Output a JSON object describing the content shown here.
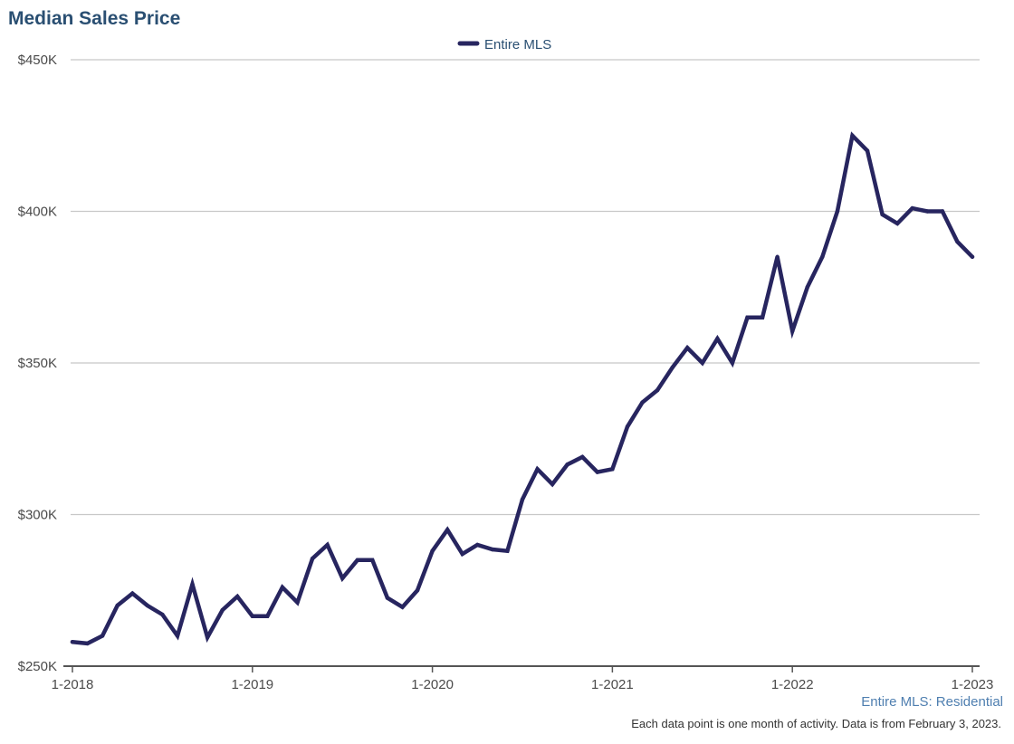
{
  "title": "Median Sales Price",
  "footer": {
    "source": "Entire MLS: Residential",
    "note": "Each data point is one month of activity. Data is from February 3, 2023."
  },
  "chart_data": {
    "type": "line",
    "title": "Median Sales Price",
    "xlabel": "",
    "ylabel": "",
    "ylim": [
      250000,
      450000
    ],
    "yticks": [
      {
        "value": 250000,
        "label": "$250K"
      },
      {
        "value": 300000,
        "label": "$300K"
      },
      {
        "value": 350000,
        "label": "$350K"
      },
      {
        "value": 400000,
        "label": "$400K"
      },
      {
        "value": 450000,
        "label": "$450K"
      }
    ],
    "xticks": [
      "1-2018",
      "1-2019",
      "1-2020",
      "1-2021",
      "1-2022",
      "1-2023"
    ],
    "grid": true,
    "legend": "top-center",
    "colors": {
      "series": "#27255f",
      "grid": "#c8c8c8",
      "axis": "#555555"
    },
    "x": [
      "1-2018",
      "2-2018",
      "3-2018",
      "4-2018",
      "5-2018",
      "6-2018",
      "7-2018",
      "8-2018",
      "9-2018",
      "10-2018",
      "11-2018",
      "12-2018",
      "1-2019",
      "2-2019",
      "3-2019",
      "4-2019",
      "5-2019",
      "6-2019",
      "7-2019",
      "8-2019",
      "9-2019",
      "10-2019",
      "11-2019",
      "12-2019",
      "1-2020",
      "2-2020",
      "3-2020",
      "4-2020",
      "5-2020",
      "6-2020",
      "7-2020",
      "8-2020",
      "9-2020",
      "10-2020",
      "11-2020",
      "12-2020",
      "1-2021",
      "2-2021",
      "3-2021",
      "4-2021",
      "5-2021",
      "6-2021",
      "7-2021",
      "8-2021",
      "9-2021",
      "10-2021",
      "11-2021",
      "12-2021",
      "1-2022",
      "2-2022",
      "3-2022",
      "4-2022",
      "5-2022",
      "6-2022",
      "7-2022",
      "8-2022",
      "9-2022",
      "10-2022",
      "11-2022",
      "12-2022",
      "1-2023"
    ],
    "series": [
      {
        "name": "Entire MLS",
        "values": [
          258000,
          257500,
          260000,
          270000,
          274000,
          270000,
          267000,
          260000,
          277000,
          259500,
          268500,
          273000,
          266500,
          266500,
          276000,
          271000,
          285500,
          290000,
          279000,
          285000,
          285000,
          272500,
          269500,
          275000,
          288000,
          295000,
          287000,
          290000,
          288500,
          288000,
          305000,
          315000,
          310000,
          316500,
          319000,
          314000,
          315000,
          329000,
          337000,
          341000,
          348500,
          355000,
          350000,
          358000,
          350000,
          365000,
          365000,
          385000,
          360500,
          375000,
          385000,
          400000,
          425000,
          420000,
          399000,
          396000,
          401000,
          400000,
          400000,
          390000,
          385000
        ]
      }
    ]
  }
}
